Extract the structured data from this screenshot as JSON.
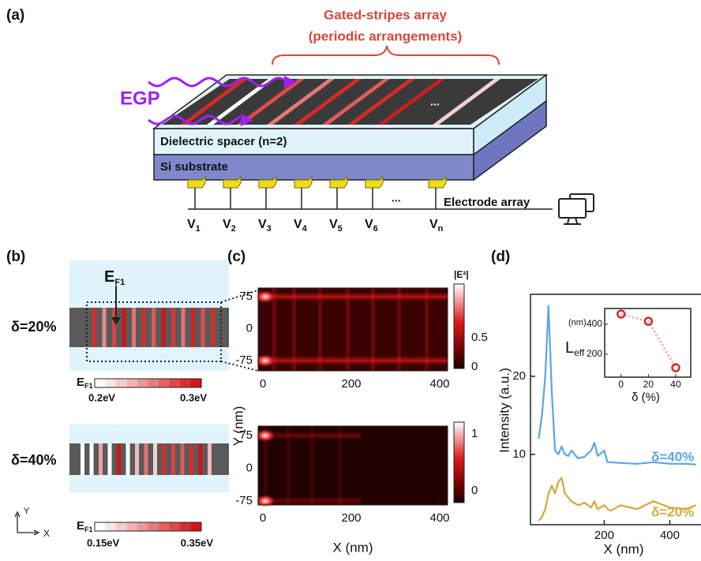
{
  "panel_labels": {
    "a": "(a)",
    "b": "(b)",
    "c": "(c)",
    "d": "(d)"
  },
  "panel_a": {
    "title": "Gated-stripes array",
    "subtitle": "(periodic arrangements)",
    "egp": "EGP",
    "stripe_ellipsis": "...",
    "spacer": "Dielectric spacer (n=2)",
    "substrate": "Si substrate",
    "electrode": "Electrode array",
    "electrode_ellipsis": "...",
    "voltages": [
      {
        "main": "V",
        "sub": "1"
      },
      {
        "main": "V",
        "sub": "2"
      },
      {
        "main": "V",
        "sub": "3"
      },
      {
        "main": "V",
        "sub": "4"
      },
      {
        "main": "V",
        "sub": "5"
      },
      {
        "main": "V",
        "sub": "6"
      },
      {
        "main": "V",
        "sub": "n"
      }
    ]
  },
  "panel_b": {
    "ef_label": {
      "main": "E",
      "sub": "F1"
    },
    "rows": [
      {
        "delta": "δ=20%",
        "bar_label": {
          "main": "E",
          "sub": "F1"
        },
        "scale_min": "0.2eV",
        "scale_max": "0.3eV"
      },
      {
        "delta": "δ=40%",
        "bar_label": {
          "main": "E",
          "sub": "F1"
        },
        "scale_min": "0.15eV",
        "scale_max": "0.35eV"
      }
    ],
    "axis_y": "Y",
    "axis_x": "X"
  },
  "panel_c": {
    "colorbar_label": "|E²|",
    "ylabel": "Y (nm)",
    "xlabel": "X (nm)",
    "maps": [
      {
        "yticks": [
          75,
          0,
          -75
        ],
        "xticks": [
          0,
          200,
          400
        ],
        "cbar_ticks": [
          0.5,
          0
        ]
      },
      {
        "yticks": [
          75,
          0,
          -75
        ],
        "xticks": [
          0,
          200,
          400
        ],
        "cbar_ticks": [
          1,
          0
        ]
      }
    ]
  },
  "chart_data": [
    {
      "type": "line",
      "ylabel": "Intensity (a.u.)",
      "xlabel": "X (nm)",
      "x": [
        0,
        10,
        20,
        30,
        40,
        50,
        60,
        70,
        80,
        90,
        100,
        120,
        140,
        160,
        170,
        180,
        200,
        210,
        220,
        250,
        300,
        350,
        400,
        450,
        480
      ],
      "series": [
        {
          "name": "δ=40%",
          "color": "#5aa5e8",
          "values": [
            12,
            15,
            20,
            29,
            18,
            10.5,
            10,
            11,
            10,
            9.8,
            10.5,
            9.5,
            9.7,
            10.5,
            11.5,
            9.8,
            10.5,
            9,
            9,
            8.9,
            8.8,
            9,
            8.8,
            8.8,
            8.7
          ]
        },
        {
          "name": "δ=20%",
          "color": "#d4a93a",
          "values": [
            1.5,
            2,
            3,
            5,
            6,
            5,
            6.5,
            7,
            5,
            4.5,
            4,
            3.5,
            3.8,
            3.2,
            4,
            3,
            3.5,
            3,
            2.8,
            3.5,
            3,
            4,
            3.2,
            3,
            3.5
          ]
        }
      ],
      "xlim": [
        -25,
        500
      ],
      "ylim": [
        1,
        30.5
      ],
      "xticks": [
        200,
        400
      ],
      "yticks": [
        10,
        20
      ]
    },
    {
      "type": "scatter",
      "ylabel": "L",
      "ylabel_sub": "eff",
      "ylabel_unit": "(nm)",
      "xlabel": "δ  (%)",
      "x": [
        0,
        20,
        40
      ],
      "values": [
        468,
        420,
        110
      ],
      "color": "#d42a2a",
      "xlim": [
        -12,
        51
      ],
      "ylim": [
        47,
        505
      ],
      "xticks": [
        0,
        20,
        40
      ],
      "yticks": [
        200,
        400
      ]
    }
  ]
}
